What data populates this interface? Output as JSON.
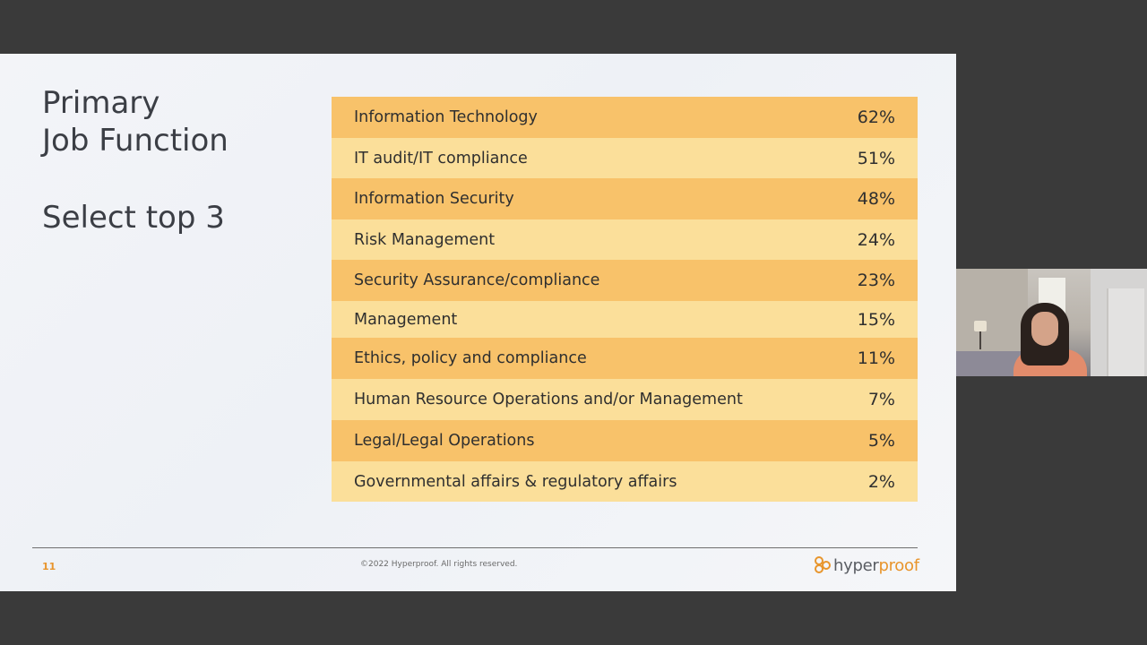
{
  "slide": {
    "title_line1": "Primary",
    "title_line2": "Job Function",
    "subtitle": "Select top 3",
    "rows": [
      {
        "label": "Information Technology",
        "value": "62%"
      },
      {
        "label": "IT audit/IT compliance",
        "value": "51%"
      },
      {
        "label": "Information Security",
        "value": "48%"
      },
      {
        "label": "Risk Management",
        "value": "24%"
      },
      {
        "label": "Security Assurance/compliance",
        "value": "23%"
      },
      {
        "label": "Management",
        "value": "15%"
      },
      {
        "label": "Ethics, policy and compliance",
        "value": "11%"
      },
      {
        "label": "Human Resource Operations  and/or Management",
        "value": "7%"
      },
      {
        "label": "Legal/Legal Operations",
        "value": "5%"
      },
      {
        "label": "Governmental affairs & regulatory affairs",
        "value": "2%"
      }
    ],
    "page_number": "11",
    "copyright": "©2022 Hyperproof. All rights reserved.",
    "logo_text_1": "hyper",
    "logo_text_2": "proof"
  },
  "colors": {
    "row_dark": "#f8c26a",
    "row_light": "#fbdf9a",
    "accent": "#e8952c",
    "background": "#3a3a3a"
  },
  "icons": {
    "logo": "hyperproof-logo-icon"
  }
}
